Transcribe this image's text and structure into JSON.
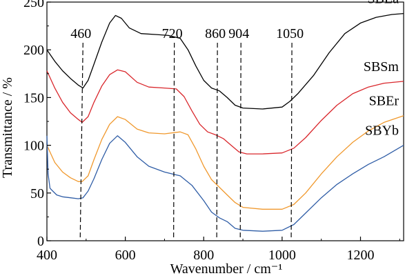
{
  "chart_data": {
    "type": "line",
    "xlabel": "Wavenumber / cm⁻¹",
    "ylabel": "Transmittance / %",
    "xlim": [
      400,
      1310
    ],
    "ylim": [
      0,
      250
    ],
    "xticks": [
      400,
      600,
      800,
      1000,
      1200
    ],
    "yticks": [
      0,
      50,
      100,
      150,
      200,
      250
    ],
    "grid": false,
    "annotations": [
      {
        "label": "460",
        "x": 492
      },
      {
        "label": "720",
        "x": 725
      },
      {
        "label": "860",
        "x": 835
      },
      {
        "label": "904",
        "x": 895
      },
      {
        "label": "1050",
        "x": 1025
      }
    ],
    "series": [
      {
        "name": "SBLa",
        "color": "#000000",
        "points": [
          [
            400,
            200
          ],
          [
            420,
            188
          ],
          [
            440,
            178
          ],
          [
            460,
            170
          ],
          [
            480,
            163
          ],
          [
            492,
            160
          ],
          [
            505,
            168
          ],
          [
            520,
            185
          ],
          [
            540,
            208
          ],
          [
            560,
            228
          ],
          [
            575,
            236
          ],
          [
            590,
            233
          ],
          [
            610,
            223
          ],
          [
            640,
            217
          ],
          [
            680,
            216
          ],
          [
            710,
            215
          ],
          [
            740,
            212
          ],
          [
            760,
            200
          ],
          [
            780,
            183
          ],
          [
            800,
            168
          ],
          [
            820,
            160
          ],
          [
            840,
            157
          ],
          [
            860,
            150
          ],
          [
            880,
            142
          ],
          [
            900,
            139
          ],
          [
            950,
            138
          ],
          [
            1000,
            140
          ],
          [
            1020,
            146
          ],
          [
            1040,
            154
          ],
          [
            1080,
            173
          ],
          [
            1120,
            197
          ],
          [
            1160,
            217
          ],
          [
            1200,
            228
          ],
          [
            1240,
            234
          ],
          [
            1280,
            237
          ],
          [
            1310,
            238
          ]
        ]
      },
      {
        "name": "SBSm",
        "color": "#d9262b",
        "points": [
          [
            400,
            178
          ],
          [
            420,
            160
          ],
          [
            440,
            145
          ],
          [
            460,
            134
          ],
          [
            480,
            127
          ],
          [
            490,
            124
          ],
          [
            505,
            130
          ],
          [
            520,
            145
          ],
          [
            540,
            162
          ],
          [
            560,
            174
          ],
          [
            580,
            179
          ],
          [
            600,
            177
          ],
          [
            630,
            166
          ],
          [
            660,
            161
          ],
          [
            700,
            160
          ],
          [
            730,
            159
          ],
          [
            750,
            151
          ],
          [
            770,
            136
          ],
          [
            790,
            122
          ],
          [
            810,
            114
          ],
          [
            830,
            111
          ],
          [
            850,
            107
          ],
          [
            870,
            100
          ],
          [
            890,
            93
          ],
          [
            910,
            91
          ],
          [
            950,
            91
          ],
          [
            1000,
            92
          ],
          [
            1030,
            97
          ],
          [
            1060,
            108
          ],
          [
            1100,
            126
          ],
          [
            1140,
            142
          ],
          [
            1180,
            154
          ],
          [
            1220,
            161
          ],
          [
            1260,
            165
          ],
          [
            1310,
            167
          ]
        ]
      },
      {
        "name": "SBEr",
        "color": "#f0982c",
        "points": [
          [
            400,
            100
          ],
          [
            420,
            82
          ],
          [
            440,
            72
          ],
          [
            460,
            66
          ],
          [
            480,
            62
          ],
          [
            490,
            62
          ],
          [
            505,
            68
          ],
          [
            520,
            85
          ],
          [
            540,
            106
          ],
          [
            560,
            122
          ],
          [
            580,
            130
          ],
          [
            600,
            127
          ],
          [
            630,
            117
          ],
          [
            660,
            113
          ],
          [
            700,
            112
          ],
          [
            740,
            114
          ],
          [
            760,
            111
          ],
          [
            780,
            96
          ],
          [
            800,
            78
          ],
          [
            820,
            64
          ],
          [
            840,
            56
          ],
          [
            860,
            48
          ],
          [
            880,
            40
          ],
          [
            900,
            35
          ],
          [
            950,
            33
          ],
          [
            1000,
            33
          ],
          [
            1030,
            38
          ],
          [
            1060,
            50
          ],
          [
            1100,
            70
          ],
          [
            1140,
            88
          ],
          [
            1180,
            103
          ],
          [
            1220,
            115
          ],
          [
            1260,
            124
          ],
          [
            1310,
            131
          ]
        ]
      },
      {
        "name": "SBYb",
        "color": "#2f5da6",
        "points": [
          [
            400,
            110
          ],
          [
            403,
            70
          ],
          [
            408,
            55
          ],
          [
            415,
            52
          ],
          [
            425,
            48
          ],
          [
            440,
            46
          ],
          [
            460,
            45
          ],
          [
            480,
            44
          ],
          [
            492,
            45
          ],
          [
            505,
            52
          ],
          [
            520,
            65
          ],
          [
            540,
            85
          ],
          [
            560,
            102
          ],
          [
            580,
            110
          ],
          [
            600,
            103
          ],
          [
            630,
            88
          ],
          [
            660,
            78
          ],
          [
            700,
            72
          ],
          [
            740,
            68
          ],
          [
            770,
            58
          ],
          [
            800,
            42
          ],
          [
            820,
            30
          ],
          [
            840,
            24
          ],
          [
            860,
            20
          ],
          [
            880,
            13
          ],
          [
            900,
            11
          ],
          [
            950,
            10
          ],
          [
            1000,
            11
          ],
          [
            1030,
            17
          ],
          [
            1060,
            29
          ],
          [
            1100,
            45
          ],
          [
            1140,
            59
          ],
          [
            1180,
            70
          ],
          [
            1220,
            80
          ],
          [
            1260,
            88
          ],
          [
            1310,
            100
          ]
        ]
      }
    ]
  }
}
